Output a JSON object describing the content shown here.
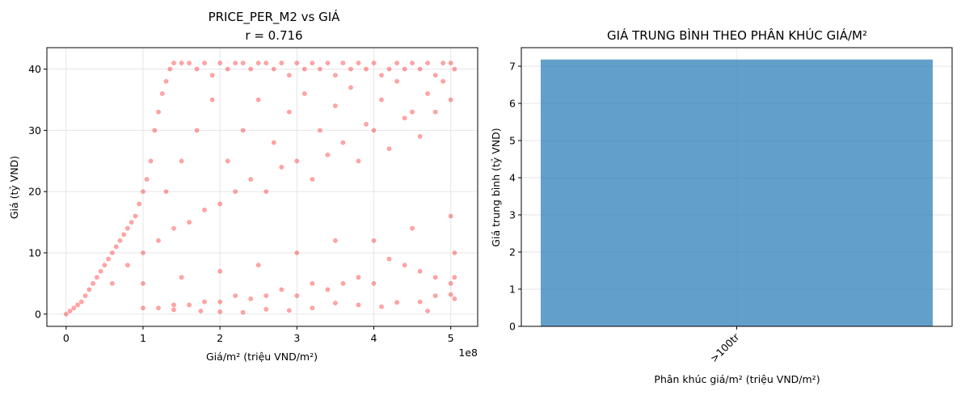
{
  "chart_data": [
    {
      "type": "scatter",
      "title": "PRICE_PER_M2 vs GIÁ",
      "subtitle": "r = 0.716",
      "xlabel": "Giá/m² (triệu VND/m²)",
      "ylabel": "Giá (tỷ VND)",
      "x_offset_label": "1e8",
      "xlim": [
        -25000000,
        535000000
      ],
      "ylim": [
        -2,
        43.5
      ],
      "xticks": [
        0,
        100000000,
        200000000,
        300000000,
        400000000,
        500000000
      ],
      "xtick_labels": [
        "0",
        "1",
        "2",
        "3",
        "4",
        "5"
      ],
      "yticks": [
        0,
        10,
        20,
        30,
        40
      ],
      "ytick_labels": [
        "0",
        "10",
        "20",
        "30",
        "40"
      ],
      "grid": true,
      "color": "#ff0000",
      "alpha": 0.35,
      "series": [
        {
          "points": [
            [
              0,
              0
            ],
            [
              5000000,
              0.5
            ],
            [
              10000000,
              1
            ],
            [
              15000000,
              1.5
            ],
            [
              20000000,
              2
            ],
            [
              25000000,
              3
            ],
            [
              30000000,
              4
            ],
            [
              35000000,
              5
            ],
            [
              40000000,
              6
            ],
            [
              45000000,
              7
            ],
            [
              50000000,
              8
            ],
            [
              55000000,
              9
            ],
            [
              60000000,
              10
            ],
            [
              65000000,
              11
            ],
            [
              70000000,
              12
            ],
            [
              75000000,
              13
            ],
            [
              80000000,
              14
            ],
            [
              85000000,
              15
            ],
            [
              90000000,
              16
            ],
            [
              95000000,
              18
            ],
            [
              100000000,
              20
            ],
            [
              105000000,
              22
            ],
            [
              110000000,
              25
            ],
            [
              115000000,
              30
            ],
            [
              120000000,
              33
            ],
            [
              125000000,
              36
            ],
            [
              130000000,
              38
            ],
            [
              135000000,
              40
            ],
            [
              140000000,
              41
            ],
            [
              150000000,
              41
            ],
            [
              160000000,
              41
            ],
            [
              170000000,
              40
            ],
            [
              180000000,
              41
            ],
            [
              190000000,
              39
            ],
            [
              200000000,
              41
            ],
            [
              210000000,
              40
            ],
            [
              220000000,
              41
            ],
            [
              230000000,
              41
            ],
            [
              240000000,
              40
            ],
            [
              250000000,
              41
            ],
            [
              260000000,
              41
            ],
            [
              270000000,
              40
            ],
            [
              280000000,
              41
            ],
            [
              290000000,
              39
            ],
            [
              300000000,
              41
            ],
            [
              310000000,
              40
            ],
            [
              320000000,
              41
            ],
            [
              330000000,
              40
            ],
            [
              340000000,
              41
            ],
            [
              350000000,
              39
            ],
            [
              360000000,
              41
            ],
            [
              370000000,
              40
            ],
            [
              380000000,
              41
            ],
            [
              390000000,
              40
            ],
            [
              400000000,
              41
            ],
            [
              410000000,
              39
            ],
            [
              420000000,
              40
            ],
            [
              430000000,
              41
            ],
            [
              440000000,
              40
            ],
            [
              450000000,
              41
            ],
            [
              460000000,
              40
            ],
            [
              470000000,
              41
            ],
            [
              480000000,
              39
            ],
            [
              490000000,
              41
            ],
            [
              500000000,
              41
            ],
            [
              505000000,
              40
            ],
            [
              60000000,
              5
            ],
            [
              80000000,
              8
            ],
            [
              100000000,
              10
            ],
            [
              120000000,
              12
            ],
            [
              140000000,
              14
            ],
            [
              160000000,
              15
            ],
            [
              180000000,
              17
            ],
            [
              200000000,
              18
            ],
            [
              220000000,
              20
            ],
            [
              240000000,
              22
            ],
            [
              260000000,
              20
            ],
            [
              280000000,
              24
            ],
            [
              300000000,
              25
            ],
            [
              320000000,
              22
            ],
            [
              340000000,
              26
            ],
            [
              360000000,
              28
            ],
            [
              380000000,
              25
            ],
            [
              400000000,
              30
            ],
            [
              420000000,
              27
            ],
            [
              440000000,
              32
            ],
            [
              460000000,
              29
            ],
            [
              480000000,
              33
            ],
            [
              500000000,
              35
            ],
            [
              100000000,
              5
            ],
            [
              150000000,
              6
            ],
            [
              200000000,
              7
            ],
            [
              250000000,
              8
            ],
            [
              300000000,
              10
            ],
            [
              350000000,
              12
            ],
            [
              400000000,
              12
            ],
            [
              450000000,
              14
            ],
            [
              500000000,
              16
            ],
            [
              505000000,
              10
            ],
            [
              505000000,
              6
            ],
            [
              500000000,
              5
            ],
            [
              480000000,
              6
            ],
            [
              460000000,
              7
            ],
            [
              440000000,
              8
            ],
            [
              420000000,
              9
            ],
            [
              400000000,
              5
            ],
            [
              380000000,
              6
            ],
            [
              360000000,
              5
            ],
            [
              340000000,
              4
            ],
            [
              320000000,
              5
            ],
            [
              300000000,
              3
            ],
            [
              280000000,
              4
            ],
            [
              260000000,
              3
            ],
            [
              240000000,
              2.5
            ],
            [
              220000000,
              3
            ],
            [
              200000000,
              2
            ],
            [
              180000000,
              2
            ],
            [
              160000000,
              1.5
            ],
            [
              140000000,
              1.5
            ],
            [
              120000000,
              1
            ],
            [
              100000000,
              1
            ],
            [
              130000000,
              20
            ],
            [
              150000000,
              25
            ],
            [
              170000000,
              30
            ],
            [
              190000000,
              35
            ],
            [
              210000000,
              25
            ],
            [
              230000000,
              30
            ],
            [
              250000000,
              35
            ],
            [
              270000000,
              28
            ],
            [
              290000000,
              33
            ],
            [
              310000000,
              36
            ],
            [
              330000000,
              30
            ],
            [
              350000000,
              34
            ],
            [
              370000000,
              37
            ],
            [
              390000000,
              31
            ],
            [
              410000000,
              35
            ],
            [
              430000000,
              38
            ],
            [
              450000000,
              33
            ],
            [
              470000000,
              36
            ],
            [
              490000000,
              38
            ],
            [
              175000000,
              0.5
            ],
            [
              230000000,
              0.3
            ],
            [
              260000000,
              0.8
            ],
            [
              320000000,
              1
            ],
            [
              380000000,
              1.5
            ],
            [
              410000000,
              1.2
            ],
            [
              460000000,
              2
            ],
            [
              470000000,
              0.5
            ],
            [
              505000000,
              2.5
            ],
            [
              140000000,
              0.7
            ],
            [
              200000000,
              0.4
            ],
            [
              290000000,
              0.6
            ],
            [
              350000000,
              1.8
            ],
            [
              430000000,
              1.9
            ],
            [
              480000000,
              3
            ],
            [
              500000000,
              3.2
            ]
          ]
        }
      ]
    },
    {
      "type": "bar",
      "title": "GIÁ TRUNG BÌNH THEO PHÂN KHÚC GIÁ/M²",
      "xlabel": "Phân khúc giá/m² (triệu VND/m²)",
      "ylabel": "Giá trung bình (tỷ VND)",
      "categories": [
        ">100tr"
      ],
      "values": [
        7.18
      ],
      "ylim": [
        0,
        7.5
      ],
      "yticks": [
        0,
        1,
        2,
        3,
        4,
        5,
        6,
        7
      ],
      "ytick_labels": [
        "0",
        "1",
        "2",
        "3",
        "4",
        "5",
        "6",
        "7"
      ],
      "grid": true,
      "color": "#1f77b4",
      "alpha": 0.7
    }
  ]
}
